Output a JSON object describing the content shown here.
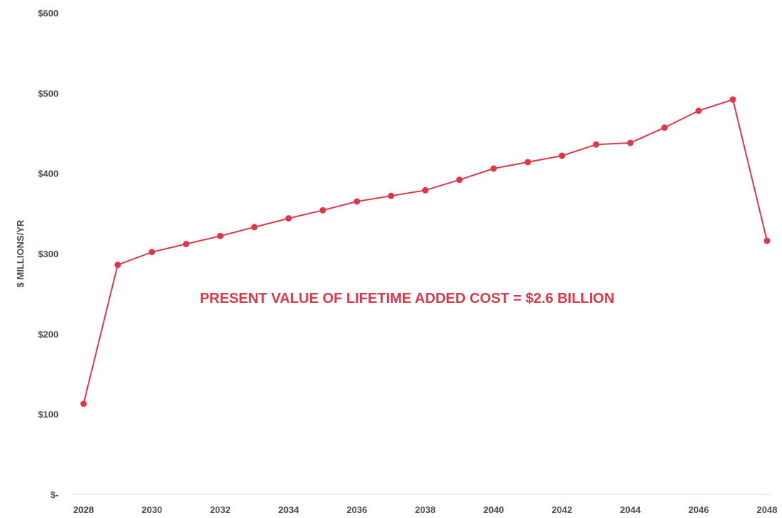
{
  "chart_data": {
    "type": "line",
    "ylabel": "$ MILLIONS/YR",
    "xlabel": "",
    "title": "",
    "x": [
      2028,
      2029,
      2030,
      2031,
      2032,
      2033,
      2034,
      2035,
      2036,
      2037,
      2038,
      2039,
      2040,
      2041,
      2042,
      2043,
      2044,
      2045,
      2046,
      2047,
      2048
    ],
    "series": [
      {
        "values": [
          113,
          286,
          302,
          312,
          322,
          333,
          344,
          354,
          365,
          372,
          379,
          392,
          406,
          414,
          422,
          436,
          438,
          457,
          478,
          492,
          316
        ]
      }
    ],
    "xlim": [
      2028,
      2048
    ],
    "ylim": [
      0,
      600
    ],
    "x_ticks": [
      2028,
      2030,
      2032,
      2034,
      2036,
      2038,
      2040,
      2042,
      2044,
      2046,
      2048
    ],
    "x_tick_labels": [
      "2028",
      "2030",
      "2032",
      "2034",
      "2036",
      "2038",
      "2040",
      "2042",
      "2044",
      "2046",
      "2048"
    ],
    "y_ticks": [
      0,
      100,
      200,
      300,
      400,
      500,
      600
    ],
    "y_tick_labels": [
      "$-",
      "$100",
      "$200",
      "$300",
      "$400",
      "$500",
      "$600"
    ],
    "grid": false,
    "line_color": "#d83a4c",
    "annotation": {
      "text": "PRESENT VALUE OF LIFETIME ADDED COST = $2.6 BILLION",
      "color": "#d83a4c"
    }
  }
}
